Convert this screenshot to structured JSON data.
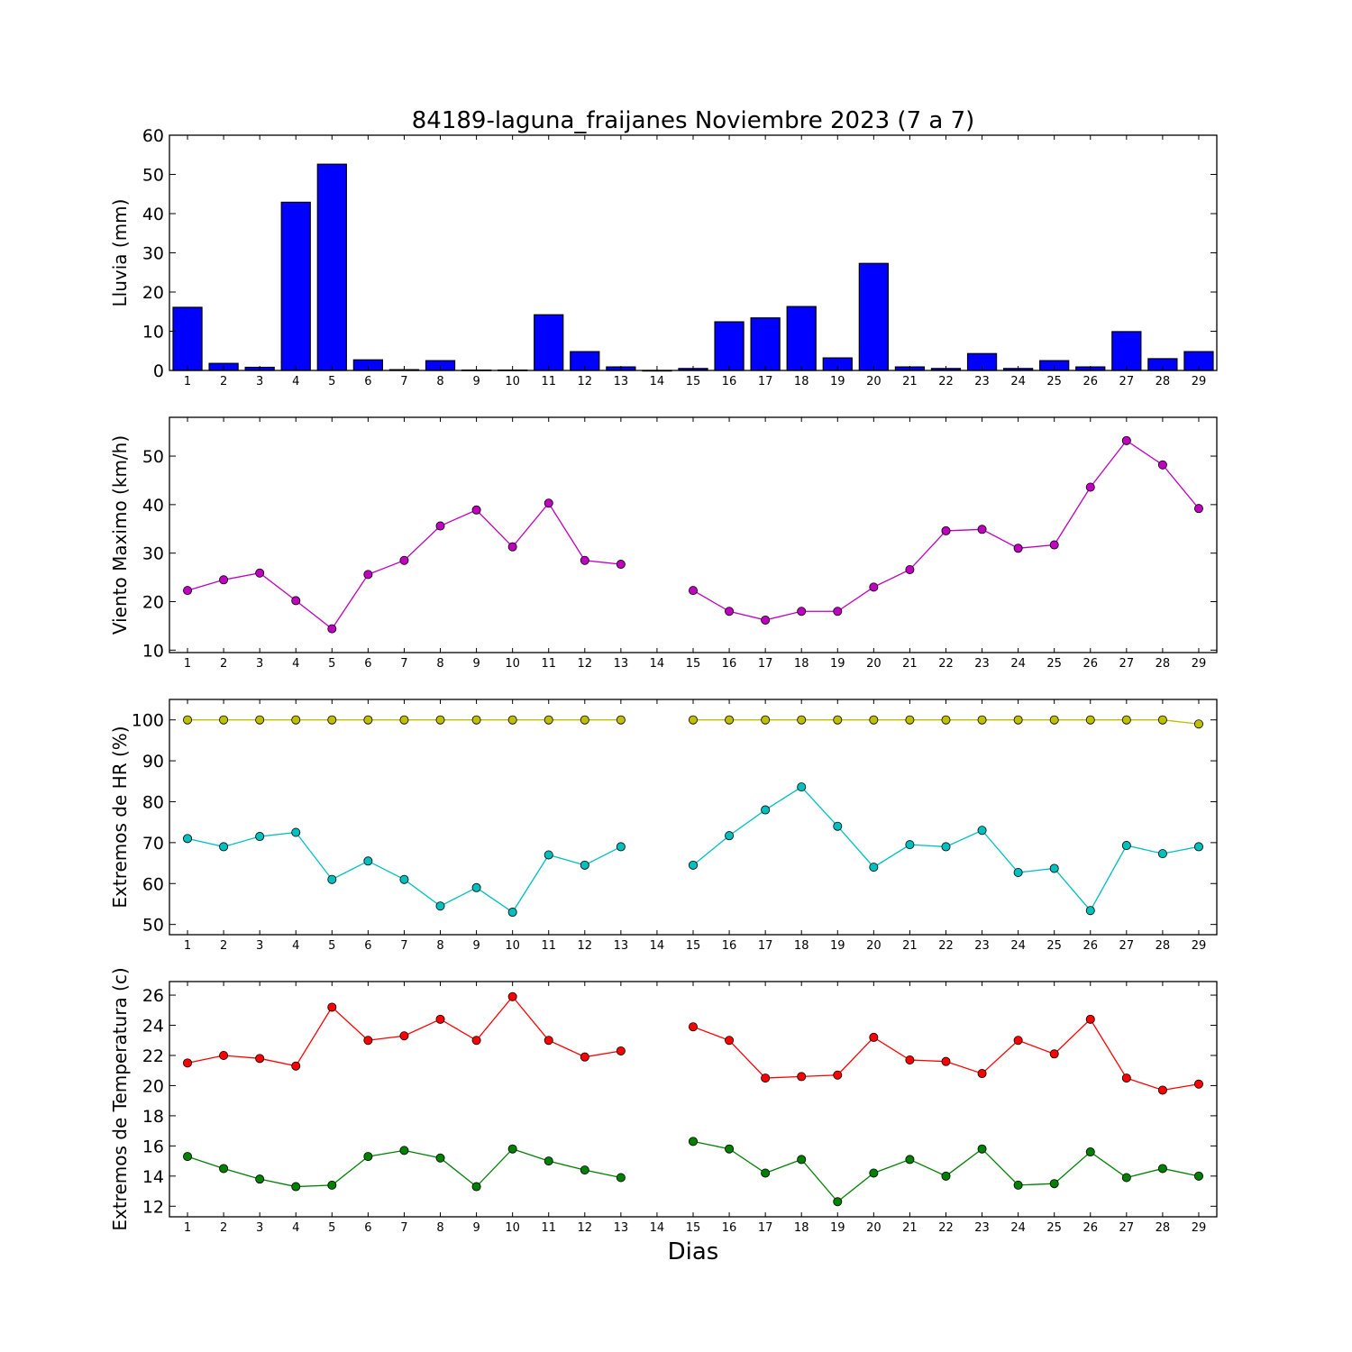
{
  "figure": {
    "title": "84189-laguna_fraijanes Noviembre 2023  (7 a 7)",
    "xlabel": "Dias"
  },
  "chart_data": [
    {
      "type": "bar",
      "id": "rain",
      "ylabel": "Lluvia (mm)",
      "color": "#0000ff",
      "ylim": [
        0,
        60
      ],
      "yticks": [
        0,
        10,
        20,
        30,
        40,
        50,
        60
      ],
      "x": [
        1,
        2,
        3,
        4,
        5,
        6,
        7,
        8,
        9,
        10,
        11,
        12,
        13,
        14,
        15,
        16,
        17,
        18,
        19,
        20,
        21,
        22,
        23,
        24,
        25,
        26,
        27,
        28,
        29
      ],
      "values": [
        16.1,
        1.8,
        0.8,
        42.9,
        52.6,
        2.7,
        0.2,
        2.5,
        0.1,
        0.1,
        14.2,
        4.8,
        0.9,
        0,
        0.5,
        12.4,
        13.4,
        16.3,
        3.2,
        27.3,
        0.9,
        0.5,
        4.3,
        0.5,
        2.5,
        0.9,
        9.9,
        3.0,
        4.8
      ],
      "grid": false
    },
    {
      "type": "line",
      "id": "wind",
      "ylabel": "Viento Maximo (km/h)",
      "ylim": [
        9.5,
        58
      ],
      "yticks": [
        10,
        20,
        30,
        40,
        50
      ],
      "x": [
        1,
        2,
        3,
        4,
        5,
        6,
        7,
        8,
        9,
        10,
        11,
        12,
        13,
        14,
        15,
        16,
        17,
        18,
        19,
        20,
        21,
        22,
        23,
        24,
        25,
        26,
        27,
        28,
        29
      ],
      "series": [
        {
          "color": "#bf00bf",
          "values": [
            22.3,
            24.5,
            25.9,
            20.2,
            14.4,
            25.6,
            28.5,
            35.6,
            38.9,
            31.3,
            40.3,
            28.5,
            27.7,
            null,
            22.3,
            18.0,
            16.2,
            18.0,
            18.0,
            23.0,
            26.6,
            34.6,
            34.9,
            31.0,
            31.7,
            43.6,
            53.2,
            48.2,
            39.2
          ]
        }
      ],
      "grid": false
    },
    {
      "type": "line",
      "id": "humidity",
      "ylabel": "Extremos de HR (%)",
      "ylim": [
        47.5,
        105
      ],
      "yticks": [
        50,
        60,
        70,
        80,
        90,
        100
      ],
      "x": [
        1,
        2,
        3,
        4,
        5,
        6,
        7,
        8,
        9,
        10,
        11,
        12,
        13,
        14,
        15,
        16,
        17,
        18,
        19,
        20,
        21,
        22,
        23,
        24,
        25,
        26,
        27,
        28,
        29
      ],
      "series": [
        {
          "color": "#bfbf00",
          "values": [
            100,
            100,
            100,
            100,
            100,
            100,
            100,
            100,
            100,
            100,
            100,
            100,
            100,
            null,
            100,
            100,
            100,
            100,
            100,
            100,
            100,
            100,
            100,
            100,
            100,
            100,
            100,
            100,
            99
          ]
        },
        {
          "color": "#00bfbf",
          "values": [
            71,
            69,
            71.5,
            72.5,
            61,
            65.5,
            61,
            54.5,
            59,
            53,
            67,
            64.5,
            69,
            null,
            64.5,
            71.7,
            78,
            83.6,
            74,
            64,
            69.5,
            69,
            73,
            62.7,
            63.7,
            53.4,
            69.3,
            67.3,
            69
          ]
        }
      ],
      "grid": false
    },
    {
      "type": "line",
      "id": "temperature",
      "ylabel": "Extremos de Temperatura (c)",
      "ylim": [
        11.3,
        26.9
      ],
      "yticks": [
        12,
        14,
        16,
        18,
        20,
        22,
        24,
        26
      ],
      "x": [
        1,
        2,
        3,
        4,
        5,
        6,
        7,
        8,
        9,
        10,
        11,
        12,
        13,
        14,
        15,
        16,
        17,
        18,
        19,
        20,
        21,
        22,
        23,
        24,
        25,
        26,
        27,
        28,
        29
      ],
      "series": [
        {
          "color": "#ff0000",
          "values": [
            21.5,
            22.0,
            21.8,
            21.3,
            25.2,
            23.0,
            23.3,
            24.4,
            23.0,
            25.9,
            23.0,
            21.9,
            22.3,
            null,
            23.9,
            23.0,
            20.5,
            20.6,
            20.7,
            23.2,
            21.7,
            21.6,
            20.8,
            23.0,
            22.1,
            24.4,
            20.5,
            19.7,
            20.1
          ]
        },
        {
          "color": "#008000",
          "values": [
            15.3,
            14.5,
            13.8,
            13.3,
            13.4,
            15.3,
            15.7,
            15.2,
            13.3,
            15.8,
            15.0,
            14.4,
            13.9,
            null,
            16.3,
            15.8,
            14.2,
            15.1,
            12.3,
            14.2,
            15.1,
            14.0,
            15.8,
            13.4,
            13.5,
            15.6,
            13.9,
            14.5,
            14.0
          ]
        }
      ],
      "grid": false
    }
  ]
}
